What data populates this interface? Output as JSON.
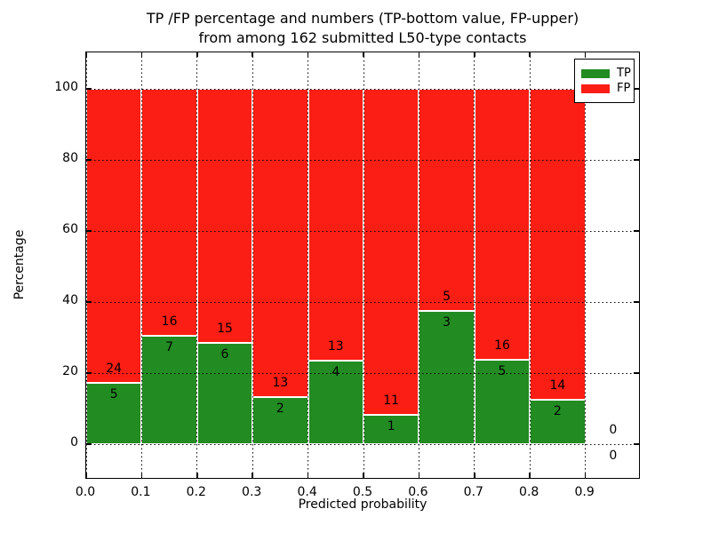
{
  "chart_data": {
    "type": "bar",
    "stacked": true,
    "normalized_to_percent": true,
    "title": "TP /FP percentage and numbers (TP-bottom value, FP-upper) from among 162 submitted L50-type contacts",
    "title_line1": "TP /FP percentage and numbers (TP-bottom value, FP-upper)",
    "title_line2": "from among 162 submitted L50-type contacts",
    "xlabel": "Predicted probability",
    "ylabel": "Percentage",
    "total_contacts": 162,
    "bin_width": 0.1,
    "categories": [
      "0.0-0.1",
      "0.1-0.2",
      "0.2-0.3",
      "0.3-0.4",
      "0.4-0.5",
      "0.5-0.6",
      "0.6-0.7",
      "0.7-0.8",
      "0.8-0.9",
      "0.9-1.0"
    ],
    "series": [
      {
        "name": "TP",
        "color": "#228b22",
        "values": [
          5,
          7,
          6,
          2,
          4,
          1,
          3,
          5,
          2,
          0
        ]
      },
      {
        "name": "FP",
        "color": "#fb1e14",
        "values": [
          24,
          16,
          15,
          13,
          13,
          11,
          5,
          16,
          14,
          0
        ]
      }
    ],
    "tp_percent_of_bin": [
      17.24,
      30.43,
      28.57,
      13.33,
      23.53,
      8.33,
      37.5,
      23.81,
      12.5,
      0
    ],
    "x_tick_labels": [
      "0.0",
      "0.1",
      "0.2",
      "0.3",
      "0.4",
      "0.5",
      "0.6",
      "0.7",
      "0.8",
      "0.9"
    ],
    "y_tick_values": [
      0,
      20,
      40,
      60,
      80,
      100
    ],
    "y_tick_labels": [
      "0",
      "20",
      "40",
      "60",
      "80",
      "100"
    ],
    "xlim": [
      0.0,
      1.0
    ],
    "ylim": [
      -10,
      110
    ],
    "grid": "dotted",
    "legend_position": "upper right",
    "legend_items": [
      {
        "label": "TP",
        "color": "#228b22"
      },
      {
        "label": "FP",
        "color": "#fb1e14"
      }
    ]
  }
}
